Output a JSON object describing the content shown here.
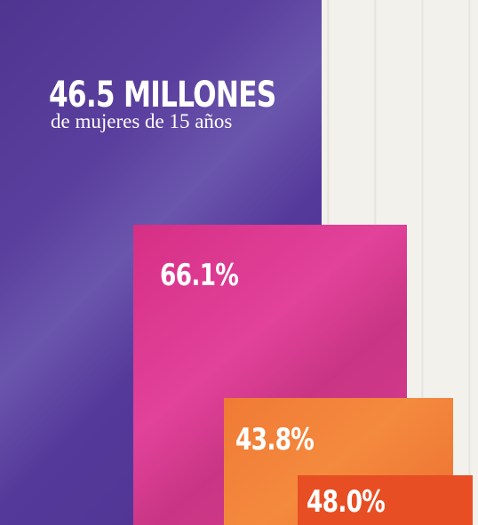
{
  "headline": {
    "title": "46.5 MILLONES",
    "subtitle": "de mujeres de 15 años"
  },
  "blocks": [
    {
      "label": "66.1%"
    },
    {
      "label": "43.8%"
    },
    {
      "label": "48.0%"
    }
  ]
}
